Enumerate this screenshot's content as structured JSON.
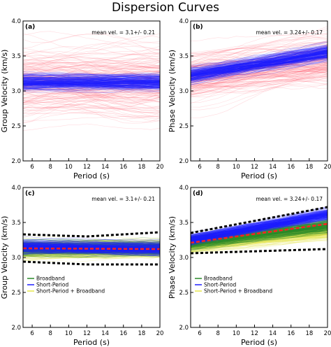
{
  "figure": {
    "title": "Dispersion Curves",
    "colors": {
      "blue": "#1f1fff",
      "red": "#ff5a6e",
      "green": "#2a8a2a",
      "yellow": "#e6e64a",
      "redMean": "#ff2020",
      "envelope": "#000000"
    }
  },
  "chart_data": [
    {
      "panel_label": "(a)",
      "type": "line",
      "xlabel": "Period (s)",
      "ylabel": "Group Velocity (km/s)",
      "xlim": [
        5,
        20
      ],
      "ylim": [
        2.0,
        4.0
      ],
      "xticks": [
        "6",
        "8",
        "10",
        "12",
        "14",
        "16",
        "18",
        "20"
      ],
      "yticks": [
        "2.0",
        "2.5",
        "3.0",
        "3.5",
        "4.0"
      ],
      "annotation": "mean vel. = 3.1+/- 0.21",
      "legend": [],
      "series": [
        {
          "color": "blue",
          "mean": [
            [
              5,
              3.12
            ],
            [
              20,
              3.12
            ]
          ],
          "spread": 0.1
        },
        {
          "color": "red",
          "mean": [
            [
              5,
              3.1
            ],
            [
              20,
              3.1
            ]
          ],
          "spread": 0.45
        }
      ]
    },
    {
      "panel_label": "(b)",
      "type": "line",
      "xlabel": "Period (s)",
      "ylabel": "Phase Velocity (km/s)",
      "xlim": [
        5,
        20
      ],
      "ylim": [
        2.0,
        4.0
      ],
      "xticks": [
        "6",
        "8",
        "10",
        "12",
        "14",
        "16",
        "18",
        "20"
      ],
      "yticks": [
        "2.0",
        "2.5",
        "3.0",
        "3.5",
        "4.0"
      ],
      "annotation": "mean vel. = 3.24+/- 0.17",
      "legend": [],
      "series": [
        {
          "color": "blue",
          "mean": [
            [
              5,
              3.22
            ],
            [
              20,
              3.55
            ]
          ],
          "spread": 0.1
        },
        {
          "color": "red",
          "mean": [
            [
              5,
              3.2
            ],
            [
              20,
              3.45
            ]
          ],
          "spread": 0.35
        }
      ]
    },
    {
      "panel_label": "(c)",
      "type": "line",
      "xlabel": "Period (s)",
      "ylabel": "Group Velocity (km/s)",
      "xlim": [
        5,
        20
      ],
      "ylim": [
        2.0,
        4.0
      ],
      "xticks": [
        "6",
        "8",
        "10",
        "12",
        "14",
        "16",
        "18",
        "20"
      ],
      "yticks": [
        "2.0",
        "2.5",
        "3.0",
        "3.5",
        "4.0"
      ],
      "annotation": "mean vel. = 3.1+/- 0.21",
      "legend": [
        "Broadband",
        "Short-Period",
        "Short-Period + Broadband"
      ],
      "series": [
        {
          "color": "blue",
          "mean": [
            [
              5,
              3.15
            ],
            [
              20,
              3.12
            ]
          ],
          "spread": 0.08
        },
        {
          "color": "green",
          "mean": [
            [
              5,
              3.12
            ],
            [
              20,
              3.12
            ]
          ],
          "spread": 0.1
        },
        {
          "color": "yellow",
          "mean": [
            [
              5,
              3.1
            ],
            [
              20,
              3.12
            ]
          ],
          "spread": 0.12
        }
      ],
      "envelope": {
        "upper": [
          [
            5,
            3.33
          ],
          [
            12,
            3.3
          ],
          [
            20,
            3.36
          ]
        ],
        "lower": [
          [
            5,
            2.94
          ],
          [
            12,
            2.9
          ],
          [
            20,
            2.9
          ]
        ]
      },
      "mean_line": [
        [
          5,
          3.13
        ],
        [
          20,
          3.12
        ]
      ]
    },
    {
      "panel_label": "(d)",
      "type": "line",
      "xlabel": "Period (s)",
      "ylabel": "Phase Velocity (km/s)",
      "xlim": [
        5,
        20
      ],
      "ylim": [
        2.0,
        4.0
      ],
      "xticks": [
        "6",
        "8",
        "10",
        "12",
        "14",
        "16",
        "18",
        "20"
      ],
      "yticks": [
        "2.0",
        "2.5",
        "3.0",
        "3.5",
        "4.0"
      ],
      "annotation": "mean vel. = 3.24+/- 0.17",
      "legend": [
        "Broadband",
        "Short-Period",
        "Short-Period + Broadband"
      ],
      "series": [
        {
          "color": "blue",
          "mean": [
            [
              5,
              3.26
            ],
            [
              20,
              3.62
            ]
          ],
          "spread": 0.07
        },
        {
          "color": "green",
          "mean": [
            [
              5,
              3.2
            ],
            [
              20,
              3.45
            ]
          ],
          "spread": 0.09
        },
        {
          "color": "yellow",
          "mean": [
            [
              5,
              3.18
            ],
            [
              20,
              3.38
            ]
          ],
          "spread": 0.1
        }
      ],
      "envelope": {
        "upper": [
          [
            5,
            3.35
          ],
          [
            20,
            3.72
          ]
        ],
        "lower": [
          [
            5,
            3.06
          ],
          [
            20,
            3.12
          ]
        ]
      },
      "mean_line": [
        [
          5,
          3.21
        ],
        [
          20,
          3.48
        ]
      ]
    }
  ]
}
